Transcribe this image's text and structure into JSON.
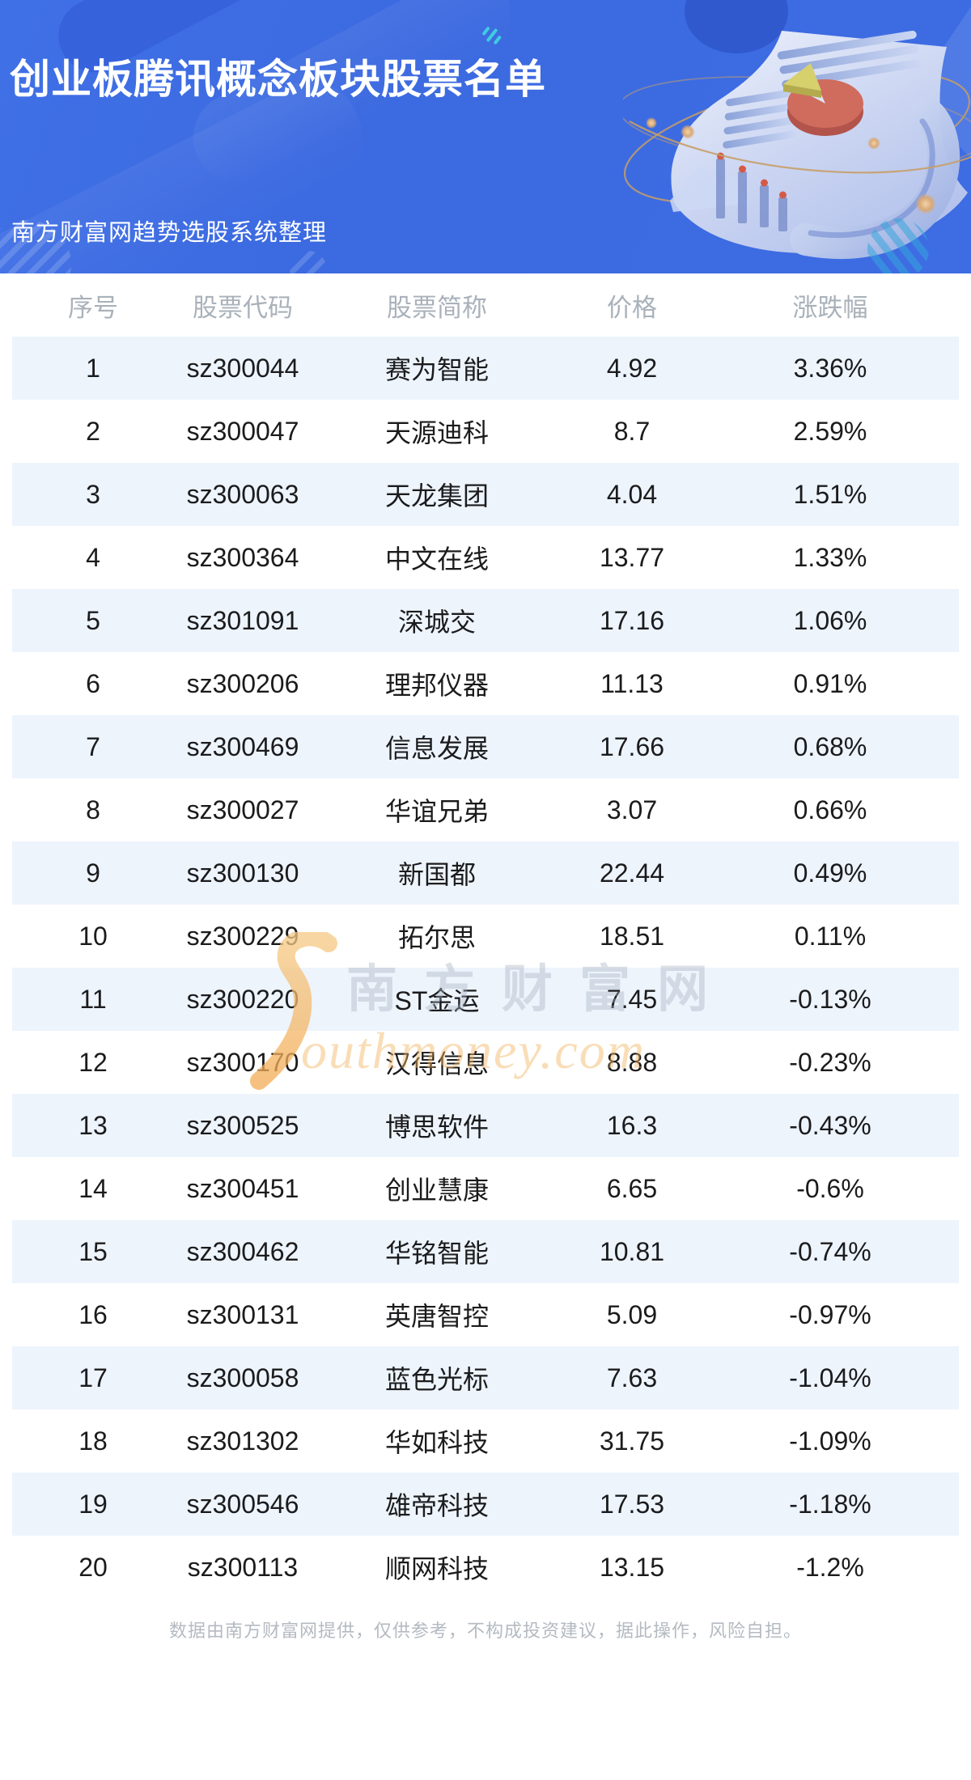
{
  "header": {
    "title": "创业板腾讯概念板块股票名单",
    "subtitle": "南方财富网趋势选股系统整理"
  },
  "table": {
    "columns": [
      "序号",
      "股票代码",
      "股票简称",
      "价格",
      "涨跌幅"
    ],
    "rows": [
      {
        "no": "1",
        "code": "sz300044",
        "name": "赛为智能",
        "price": "4.92",
        "change": "3.36%"
      },
      {
        "no": "2",
        "code": "sz300047",
        "name": "天源迪科",
        "price": "8.7",
        "change": "2.59%"
      },
      {
        "no": "3",
        "code": "sz300063",
        "name": "天龙集团",
        "price": "4.04",
        "change": "1.51%"
      },
      {
        "no": "4",
        "code": "sz300364",
        "name": "中文在线",
        "price": "13.77",
        "change": "1.33%"
      },
      {
        "no": "5",
        "code": "sz301091",
        "name": "深城交",
        "price": "17.16",
        "change": "1.06%"
      },
      {
        "no": "6",
        "code": "sz300206",
        "name": "理邦仪器",
        "price": "11.13",
        "change": "0.91%"
      },
      {
        "no": "7",
        "code": "sz300469",
        "name": "信息发展",
        "price": "17.66",
        "change": "0.68%"
      },
      {
        "no": "8",
        "code": "sz300027",
        "name": "华谊兄弟",
        "price": "3.07",
        "change": "0.66%"
      },
      {
        "no": "9",
        "code": "sz300130",
        "name": "新国都",
        "price": "22.44",
        "change": "0.49%"
      },
      {
        "no": "10",
        "code": "sz300229",
        "name": "拓尔思",
        "price": "18.51",
        "change": "0.11%"
      },
      {
        "no": "11",
        "code": "sz300220",
        "name": "ST金运",
        "price": "7.45",
        "change": "-0.13%"
      },
      {
        "no": "12",
        "code": "sz300170",
        "name": "汉得信息",
        "price": "8.88",
        "change": "-0.23%"
      },
      {
        "no": "13",
        "code": "sz300525",
        "name": "博思软件",
        "price": "16.3",
        "change": "-0.43%"
      },
      {
        "no": "14",
        "code": "sz300451",
        "name": "创业慧康",
        "price": "6.65",
        "change": "-0.6%"
      },
      {
        "no": "15",
        "code": "sz300462",
        "name": "华铭智能",
        "price": "10.81",
        "change": "-0.74%"
      },
      {
        "no": "16",
        "code": "sz300131",
        "name": "英唐智控",
        "price": "5.09",
        "change": "-0.97%"
      },
      {
        "no": "17",
        "code": "sz300058",
        "name": "蓝色光标",
        "price": "7.63",
        "change": "-1.04%"
      },
      {
        "no": "18",
        "code": "sz301302",
        "name": "华如科技",
        "price": "31.75",
        "change": "-1.09%"
      },
      {
        "no": "19",
        "code": "sz300546",
        "name": "雄帝科技",
        "price": "17.53",
        "change": "-1.18%"
      },
      {
        "no": "20",
        "code": "sz300113",
        "name": "顺网科技",
        "price": "13.15",
        "change": "-1.2%"
      }
    ]
  },
  "watermark": {
    "cn": "南方财富网",
    "en": "outhmoney.com"
  },
  "footer": {
    "disclaimer": "数据由南方财富网提供，仅供参考，不构成投资建议，据此操作，风险自担。"
  },
  "colors": {
    "banner_blue": "#3d6ce3",
    "stripe_blue": "#edf4fc",
    "header_label_gray": "#a9b1ba",
    "cell_text": "#1b1b1d",
    "teal_accent": "#3ecde2",
    "pie_red": "#cf6c5e",
    "pie_yellow": "#d6d06d",
    "orbit_tan": "#c69e68",
    "watermark_orange": "#f3b462",
    "footer_gray": "#b4bac1"
  }
}
